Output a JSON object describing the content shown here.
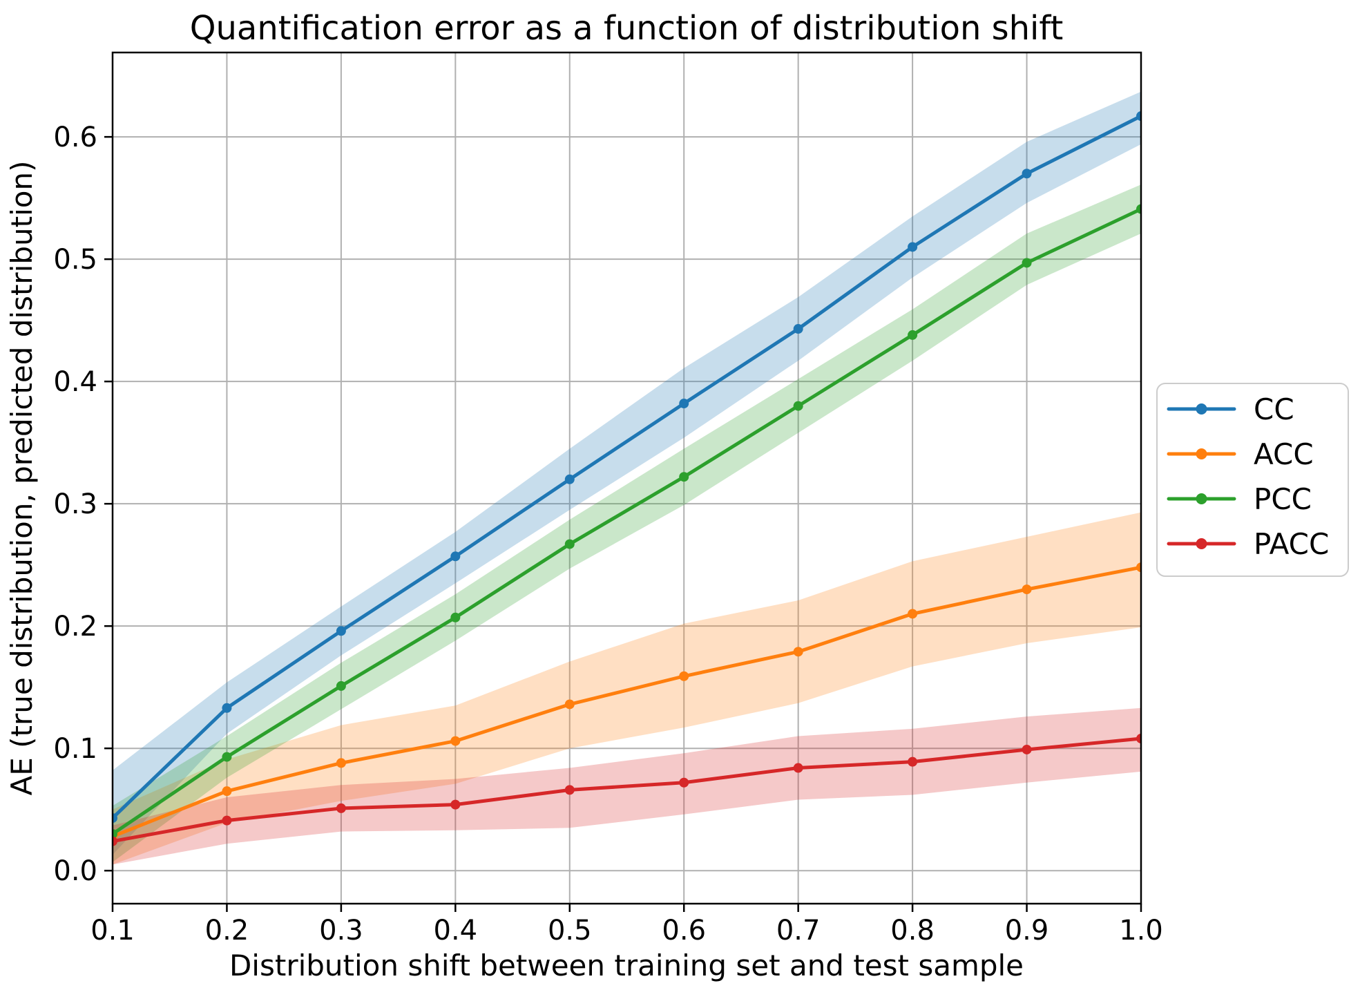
{
  "chart_data": {
    "type": "line",
    "title": "Quantification error as a function of distribution shift",
    "xlabel": "Distribution shift between training set and test sample",
    "ylabel": "AE (true distribution, predicted distribution)",
    "xlim": [
      0.1,
      1.0
    ],
    "ylim": [
      -0.027,
      0.669
    ],
    "grid": true,
    "grid_color": "#b0b0b0",
    "spine_color": "#000000",
    "band_alpha": 0.25,
    "legend_position": "center right, outside axes",
    "xticks": [
      {
        "value": 0.1,
        "label": "0.1"
      },
      {
        "value": 0.2,
        "label": "0.2"
      },
      {
        "value": 0.3,
        "label": "0.3"
      },
      {
        "value": 0.4,
        "label": "0.4"
      },
      {
        "value": 0.5,
        "label": "0.5"
      },
      {
        "value": 0.6,
        "label": "0.6"
      },
      {
        "value": 0.7,
        "label": "0.7"
      },
      {
        "value": 0.8,
        "label": "0.8"
      },
      {
        "value": 0.9,
        "label": "0.9"
      },
      {
        "value": 1.0,
        "label": "1.0"
      }
    ],
    "yticks": [
      {
        "value": 0.0,
        "label": "0.0"
      },
      {
        "value": 0.1,
        "label": "0.1"
      },
      {
        "value": 0.2,
        "label": "0.2"
      },
      {
        "value": 0.3,
        "label": "0.3"
      },
      {
        "value": 0.4,
        "label": "0.4"
      },
      {
        "value": 0.5,
        "label": "0.5"
      },
      {
        "value": 0.6,
        "label": "0.6"
      }
    ],
    "x": [
      0.1,
      0.2,
      0.3,
      0.4,
      0.5,
      0.6,
      0.7,
      0.8,
      0.9,
      1.0
    ],
    "series": [
      {
        "name": "CC",
        "color": "#1f77b4",
        "values": [
          0.043,
          0.133,
          0.196,
          0.257,
          0.32,
          0.382,
          0.443,
          0.51,
          0.57,
          0.617
        ],
        "band_lower": [
          0.013,
          0.112,
          0.176,
          0.235,
          0.295,
          0.354,
          0.417,
          0.485,
          0.546,
          0.594
        ],
        "band_upper": [
          0.082,
          0.154,
          0.216,
          0.277,
          0.345,
          0.411,
          0.469,
          0.535,
          0.596,
          0.637
        ]
      },
      {
        "name": "ACC",
        "color": "#ff7f0e",
        "values": [
          0.028,
          0.065,
          0.088,
          0.106,
          0.136,
          0.159,
          0.179,
          0.21,
          0.23,
          0.248
        ],
        "band_lower": [
          0.005,
          0.039,
          0.057,
          0.071,
          0.1,
          0.117,
          0.137,
          0.167,
          0.186,
          0.199
        ],
        "band_upper": [
          0.05,
          0.091,
          0.119,
          0.135,
          0.171,
          0.202,
          0.221,
          0.253,
          0.273,
          0.293
        ]
      },
      {
        "name": "PCC",
        "color": "#2ca02c",
        "values": [
          0.03,
          0.093,
          0.151,
          0.207,
          0.267,
          0.322,
          0.38,
          0.438,
          0.497,
          0.541
        ],
        "band_lower": [
          0.007,
          0.076,
          0.132,
          0.188,
          0.247,
          0.299,
          0.358,
          0.417,
          0.479,
          0.521
        ],
        "band_upper": [
          0.053,
          0.11,
          0.17,
          0.226,
          0.287,
          0.345,
          0.402,
          0.459,
          0.521,
          0.561
        ]
      },
      {
        "name": "PACC",
        "color": "#d62728",
        "values": [
          0.024,
          0.041,
          0.051,
          0.054,
          0.066,
          0.072,
          0.084,
          0.089,
          0.099,
          0.108
        ],
        "band_lower": [
          0.005,
          0.022,
          0.032,
          0.033,
          0.035,
          0.046,
          0.058,
          0.062,
          0.072,
          0.081
        ],
        "band_upper": [
          0.037,
          0.06,
          0.07,
          0.075,
          0.084,
          0.096,
          0.11,
          0.116,
          0.126,
          0.133
        ]
      }
    ],
    "legend": [
      "CC",
      "ACC",
      "PCC",
      "PACC"
    ]
  }
}
